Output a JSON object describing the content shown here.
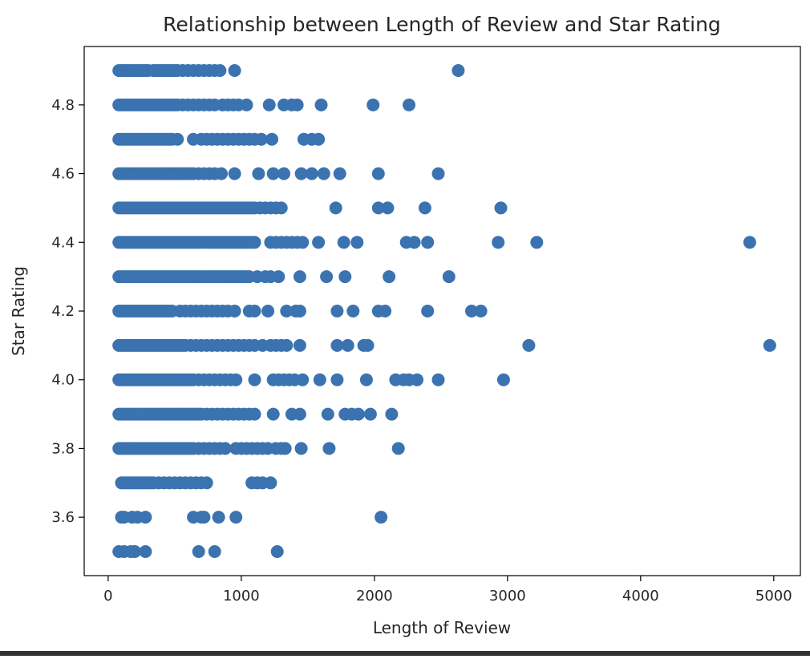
{
  "chart_data": {
    "type": "scatter",
    "title": "Relationship between Length of Review and Star Rating",
    "xlabel": "Length of Review",
    "ylabel": "Star Rating",
    "xlim": [
      -180,
      5200
    ],
    "ylim": [
      3.43,
      4.97
    ],
    "xticks": [
      0,
      1000,
      2000,
      3000,
      4000,
      5000
    ],
    "yticks": [
      3.6,
      3.8,
      4.0,
      4.2,
      4.4,
      4.6,
      4.8
    ],
    "ytick_decimals": 1,
    "grid": false,
    "legend": "none",
    "marker_color": "#3b73b0",
    "point_groups": [
      {
        "y": 4.9,
        "x": [
          80,
          100,
          120,
          140,
          160,
          180,
          200,
          220,
          240,
          260,
          280,
          300,
          340,
          360,
          380,
          400,
          420,
          440,
          460,
          480,
          500,
          520,
          560,
          600,
          640,
          680,
          720,
          760,
          800,
          840,
          950,
          2630
        ]
      },
      {
        "y": 4.8,
        "x": [
          80,
          100,
          120,
          140,
          160,
          180,
          200,
          220,
          240,
          260,
          280,
          300,
          320,
          340,
          360,
          380,
          400,
          420,
          440,
          460,
          480,
          500,
          520,
          560,
          600,
          640,
          680,
          720,
          760,
          800,
          860,
          900,
          940,
          980,
          1040,
          1210,
          1320,
          1380,
          1420,
          1600,
          1990,
          2260
        ]
      },
      {
        "y": 4.7,
        "x": [
          80,
          100,
          120,
          140,
          160,
          180,
          200,
          220,
          240,
          260,
          280,
          300,
          320,
          340,
          360,
          380,
          400,
          420,
          440,
          460,
          480,
          520,
          640,
          700,
          740,
          780,
          820,
          860,
          900,
          940,
          980,
          1020,
          1060,
          1100,
          1150,
          1230,
          1470,
          1530,
          1580
        ]
      },
      {
        "y": 4.6,
        "x": [
          80,
          100,
          120,
          140,
          160,
          180,
          200,
          220,
          240,
          260,
          280,
          300,
          320,
          340,
          360,
          380,
          400,
          420,
          440,
          460,
          480,
          500,
          520,
          540,
          560,
          580,
          600,
          620,
          640,
          680,
          720,
          760,
          800,
          850,
          950,
          1130,
          1240,
          1320,
          1450,
          1530,
          1620,
          1740,
          2030,
          2480
        ]
      },
      {
        "y": 4.5,
        "x": [
          80,
          100,
          120,
          140,
          160,
          180,
          200,
          220,
          240,
          260,
          280,
          300,
          320,
          340,
          360,
          380,
          400,
          420,
          440,
          460,
          480,
          500,
          520,
          540,
          560,
          580,
          600,
          620,
          640,
          660,
          680,
          700,
          720,
          740,
          760,
          780,
          800,
          820,
          840,
          860,
          880,
          900,
          920,
          940,
          960,
          980,
          1000,
          1020,
          1040,
          1060,
          1080,
          1100,
          1140,
          1180,
          1220,
          1260,
          1300,
          1710,
          2030,
          2100,
          2380,
          2950
        ]
      },
      {
        "y": 4.4,
        "x": [
          80,
          100,
          120,
          140,
          160,
          180,
          200,
          220,
          240,
          260,
          280,
          300,
          320,
          340,
          360,
          380,
          400,
          420,
          440,
          460,
          480,
          500,
          520,
          540,
          560,
          580,
          600,
          620,
          640,
          660,
          680,
          700,
          720,
          740,
          760,
          780,
          800,
          820,
          840,
          860,
          880,
          900,
          920,
          940,
          960,
          980,
          1000,
          1020,
          1040,
          1060,
          1080,
          1100,
          1220,
          1260,
          1300,
          1340,
          1380,
          1420,
          1460,
          1580,
          1770,
          1870,
          2240,
          2300,
          2400,
          2930,
          3220,
          4820
        ]
      },
      {
        "y": 4.3,
        "x": [
          80,
          100,
          120,
          140,
          160,
          180,
          200,
          220,
          240,
          260,
          280,
          300,
          320,
          340,
          360,
          380,
          400,
          420,
          440,
          460,
          480,
          500,
          520,
          540,
          560,
          580,
          600,
          620,
          640,
          660,
          680,
          700,
          720,
          740,
          760,
          780,
          800,
          820,
          840,
          860,
          880,
          900,
          920,
          940,
          960,
          980,
          1000,
          1020,
          1040,
          1060,
          1120,
          1180,
          1220,
          1280,
          1440,
          1640,
          1780,
          2110,
          2560
        ]
      },
      {
        "y": 4.2,
        "x": [
          80,
          100,
          120,
          140,
          160,
          180,
          200,
          220,
          240,
          260,
          280,
          300,
          320,
          340,
          360,
          380,
          400,
          420,
          440,
          460,
          480,
          540,
          580,
          620,
          660,
          700,
          740,
          780,
          820,
          860,
          900,
          950,
          1060,
          1100,
          1200,
          1340,
          1410,
          1440,
          1720,
          1840,
          2030,
          2080,
          2400,
          2730,
          2800
        ]
      },
      {
        "y": 4.1,
        "x": [
          80,
          100,
          120,
          140,
          160,
          180,
          200,
          220,
          240,
          260,
          280,
          300,
          320,
          340,
          360,
          380,
          400,
          420,
          440,
          460,
          480,
          500,
          520,
          540,
          560,
          580,
          620,
          660,
          700,
          740,
          780,
          820,
          860,
          900,
          940,
          980,
          1020,
          1060,
          1100,
          1160,
          1220,
          1260,
          1300,
          1340,
          1440,
          1720,
          1800,
          1920,
          1950,
          3160,
          4970
        ]
      },
      {
        "y": 4.0,
        "x": [
          80,
          100,
          120,
          140,
          160,
          180,
          200,
          220,
          240,
          260,
          280,
          300,
          320,
          340,
          360,
          380,
          400,
          420,
          440,
          460,
          480,
          500,
          520,
          540,
          560,
          580,
          600,
          620,
          640,
          680,
          720,
          760,
          800,
          840,
          880,
          920,
          960,
          1100,
          1240,
          1280,
          1320,
          1360,
          1400,
          1460,
          1590,
          1720,
          1940,
          2160,
          2220,
          2260,
          2320,
          2480,
          2970
        ]
      },
      {
        "y": 3.9,
        "x": [
          80,
          100,
          120,
          140,
          160,
          180,
          200,
          220,
          240,
          260,
          280,
          300,
          320,
          340,
          360,
          380,
          400,
          420,
          440,
          460,
          480,
          500,
          520,
          540,
          560,
          580,
          600,
          620,
          640,
          660,
          680,
          700,
          740,
          780,
          820,
          860,
          900,
          940,
          980,
          1020,
          1060,
          1100,
          1240,
          1380,
          1440,
          1650,
          1780,
          1830,
          1880,
          1970,
          2130
        ]
      },
      {
        "y": 3.8,
        "x": [
          80,
          100,
          120,
          140,
          160,
          180,
          200,
          220,
          240,
          260,
          280,
          300,
          320,
          340,
          360,
          380,
          400,
          420,
          440,
          460,
          480,
          500,
          520,
          540,
          560,
          580,
          600,
          620,
          640,
          680,
          720,
          760,
          800,
          840,
          880,
          960,
          1000,
          1040,
          1080,
          1120,
          1160,
          1200,
          1260,
          1300,
          1330,
          1450,
          1660,
          2180
        ]
      },
      {
        "y": 3.7,
        "x": [
          100,
          120,
          140,
          160,
          180,
          200,
          220,
          240,
          260,
          280,
          300,
          320,
          340,
          380,
          420,
          460,
          500,
          540,
          580,
          620,
          660,
          700,
          740,
          1080,
          1120,
          1160,
          1220
        ]
      },
      {
        "y": 3.6,
        "x": [
          100,
          120,
          180,
          220,
          280,
          640,
          700,
          720,
          830,
          960,
          2050
        ]
      },
      {
        "y": 3.5,
        "x": [
          80,
          120,
          170,
          200,
          280,
          680,
          800,
          1270
        ]
      }
    ]
  }
}
